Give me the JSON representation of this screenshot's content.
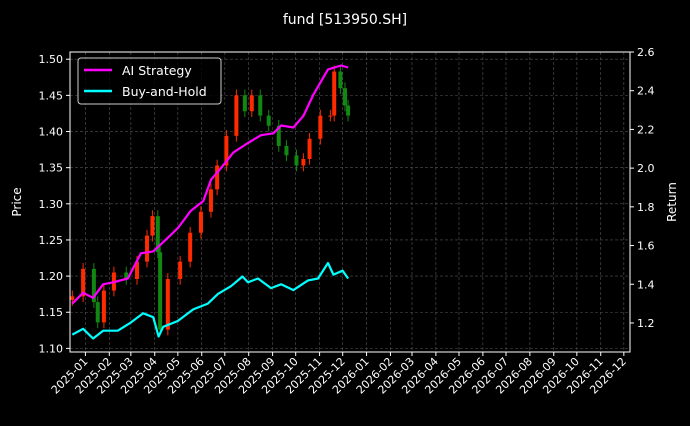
{
  "chart_data": {
    "type": "line",
    "title": "fund [513950.SH]",
    "ylabel_left": "Price",
    "ylabel_right": "Return",
    "xlim": [
      "2024-12-12",
      "2026-12-09"
    ],
    "ylim_left": [
      1.095,
      1.51
    ],
    "ylim_right": [
      1.05,
      2.6
    ],
    "grid": true,
    "legend_placement": "upper-left",
    "x_ticks": [
      "2025-01",
      "2025-02",
      "2025-03",
      "2025-04",
      "2025-05",
      "2025-06",
      "2025-07",
      "2025-08",
      "2025-09",
      "2025-10",
      "2025-11",
      "2025-12",
      "2026-01",
      "2026-02",
      "2026-03",
      "2026-04",
      "2026-05",
      "2026-06",
      "2026-07",
      "2026-08",
      "2026-09",
      "2026-10",
      "2026-11",
      "2026-12"
    ],
    "y_ticks_left": [
      "1.10",
      "1.15",
      "1.20",
      "1.25",
      "1.30",
      "1.35",
      "1.40",
      "1.45",
      "1.50"
    ],
    "y_ticks_right": [
      "1.2",
      "1.4",
      "1.6",
      "1.8",
      "2.0",
      "2.2",
      "2.4",
      "2.6"
    ],
    "price": {
      "up_color": "#ff2a00",
      "down_color": "#118811",
      "points": [
        [
          "2024-12-15",
          1.172
        ],
        [
          "2024-12-29",
          1.21
        ],
        [
          "2025-01-12",
          1.164
        ],
        [
          "2025-01-17",
          1.136
        ],
        [
          "2025-01-25",
          1.18
        ],
        [
          "2025-02-07",
          1.205
        ],
        [
          "2025-02-23",
          1.196
        ],
        [
          "2025-03-09",
          1.22
        ],
        [
          "2025-03-22",
          1.256
        ],
        [
          "2025-03-29",
          1.283
        ],
        [
          "2025-04-05",
          1.233
        ],
        [
          "2025-04-08",
          1.126
        ],
        [
          "2025-04-18",
          1.196
        ],
        [
          "2025-05-04",
          1.22
        ],
        [
          "2025-05-17",
          1.26
        ],
        [
          "2025-05-31",
          1.289
        ],
        [
          "2025-06-13",
          1.32
        ],
        [
          "2025-06-21",
          1.353
        ],
        [
          "2025-07-03",
          1.394
        ],
        [
          "2025-07-16",
          1.45
        ],
        [
          "2025-07-27",
          1.428
        ],
        [
          "2025-08-05",
          1.45
        ],
        [
          "2025-08-16",
          1.422
        ],
        [
          "2025-08-27",
          1.408
        ],
        [
          "2025-09-09",
          1.38
        ],
        [
          "2025-09-19",
          1.367
        ],
        [
          "2025-10-02",
          1.353
        ],
        [
          "2025-10-11",
          1.362
        ],
        [
          "2025-10-19",
          1.39
        ],
        [
          "2025-11-02",
          1.422
        ],
        [
          "2025-11-15",
          1.422
        ],
        [
          "2025-11-20",
          1.483
        ],
        [
          "2025-11-28",
          1.46
        ],
        [
          "2025-12-04",
          1.436
        ],
        [
          "2025-12-08",
          1.422
        ]
      ]
    },
    "series": [
      {
        "name": "AI Strategy",
        "color": "#ff00ff",
        "axis": "right",
        "points": [
          [
            "2024-12-15",
            1.3
          ],
          [
            "2024-12-29",
            1.356
          ],
          [
            "2025-01-11",
            1.33
          ],
          [
            "2025-01-24",
            1.4
          ],
          [
            "2025-02-06",
            1.41
          ],
          [
            "2025-02-25",
            1.43
          ],
          [
            "2025-03-14",
            1.56
          ],
          [
            "2025-03-30",
            1.57
          ],
          [
            "2025-04-18",
            1.64
          ],
          [
            "2025-05-01",
            1.69
          ],
          [
            "2025-05-18",
            1.78
          ],
          [
            "2025-06-03",
            1.83
          ],
          [
            "2025-06-13",
            1.94
          ],
          [
            "2025-06-26",
            2.0
          ],
          [
            "2025-07-12",
            2.08
          ],
          [
            "2025-07-31",
            2.13
          ],
          [
            "2025-08-17",
            2.17
          ],
          [
            "2025-09-02",
            2.18
          ],
          [
            "2025-09-12",
            2.22
          ],
          [
            "2025-09-28",
            2.21
          ],
          [
            "2025-10-11",
            2.27
          ],
          [
            "2025-10-24",
            2.38
          ],
          [
            "2025-11-12",
            2.51
          ],
          [
            "2025-11-29",
            2.53
          ],
          [
            "2025-12-08",
            2.52
          ]
        ]
      },
      {
        "name": "Buy-and-Hold",
        "color": "#00ffff",
        "axis": "right",
        "points": [
          [
            "2024-12-15",
            1.14
          ],
          [
            "2024-12-29",
            1.17
          ],
          [
            "2025-01-11",
            1.12
          ],
          [
            "2025-01-24",
            1.16
          ],
          [
            "2025-02-12",
            1.16
          ],
          [
            "2025-02-28",
            1.2
          ],
          [
            "2025-03-17",
            1.25
          ],
          [
            "2025-03-30",
            1.23
          ],
          [
            "2025-04-06",
            1.13
          ],
          [
            "2025-04-12",
            1.18
          ],
          [
            "2025-05-01",
            1.21
          ],
          [
            "2025-05-21",
            1.27
          ],
          [
            "2025-06-09",
            1.3
          ],
          [
            "2025-06-22",
            1.35
          ],
          [
            "2025-07-09",
            1.39
          ],
          [
            "2025-07-24",
            1.44
          ],
          [
            "2025-07-31",
            1.41
          ],
          [
            "2025-08-13",
            1.43
          ],
          [
            "2025-08-30",
            1.38
          ],
          [
            "2025-09-12",
            1.4
          ],
          [
            "2025-09-28",
            1.37
          ],
          [
            "2025-10-17",
            1.42
          ],
          [
            "2025-10-30",
            1.43
          ],
          [
            "2025-11-12",
            1.51
          ],
          [
            "2025-11-19",
            1.45
          ],
          [
            "2025-12-01",
            1.47
          ],
          [
            "2025-12-08",
            1.43
          ]
        ]
      }
    ]
  }
}
